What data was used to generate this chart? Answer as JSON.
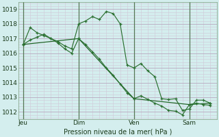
{
  "title": "Pression niveau de la mer( hPa )",
  "bg_color": "#d4eeee",
  "grid_major_color": "#b8a8c0",
  "grid_minor_color": "#d0c8d8",
  "line_color_thick": "#1a6020",
  "line_color_thin": "#2a7030",
  "ylim": [
    1011.5,
    1019.5
  ],
  "yticks": [
    1012,
    1013,
    1014,
    1015,
    1016,
    1017,
    1018,
    1019
  ],
  "xtick_labels": [
    "Jeu",
    "Dim",
    "Ven",
    "Sam"
  ],
  "xtick_positions": [
    0,
    48,
    96,
    144
  ],
  "xlim": [
    -4,
    168
  ],
  "series1_x": [
    0,
    6,
    12,
    18,
    24,
    30,
    36,
    42,
    48,
    54,
    60,
    66,
    72,
    78,
    84,
    90,
    96,
    102,
    108,
    114,
    120,
    126,
    132,
    138,
    144,
    150,
    156,
    162
  ],
  "series1_y": [
    1016.6,
    1017.75,
    1017.4,
    1017.2,
    1017.0,
    1016.7,
    1016.3,
    1016.0,
    1017.0,
    1016.6,
    1016.1,
    1015.6,
    1015.0,
    1014.5,
    1013.9,
    1013.3,
    1012.9,
    1013.1,
    1012.85,
    1012.6,
    1012.4,
    1012.1,
    1012.05,
    1011.8,
    1012.5,
    1012.6,
    1012.5,
    1012.45
  ],
  "series2_x": [
    0,
    6,
    12,
    18,
    24,
    30,
    36,
    42,
    48,
    54,
    60,
    66,
    72,
    78,
    84,
    90,
    96,
    102,
    108,
    114,
    120,
    126,
    132,
    138,
    144,
    150,
    156,
    162
  ],
  "series2_y": [
    1016.6,
    1016.9,
    1017.1,
    1017.3,
    1017.0,
    1016.8,
    1016.5,
    1016.3,
    1018.0,
    1018.2,
    1018.5,
    1018.3,
    1018.85,
    1018.7,
    1018.0,
    1015.2,
    1015.0,
    1015.3,
    1014.8,
    1014.4,
    1012.9,
    1012.85,
    1012.9,
    1012.1,
    1012.2,
    1012.8,
    1012.8,
    1012.6
  ],
  "series3_x": [
    0,
    48,
    96,
    144,
    162
  ],
  "series3_y": [
    1016.6,
    1017.0,
    1012.9,
    1012.5,
    1012.6
  ]
}
